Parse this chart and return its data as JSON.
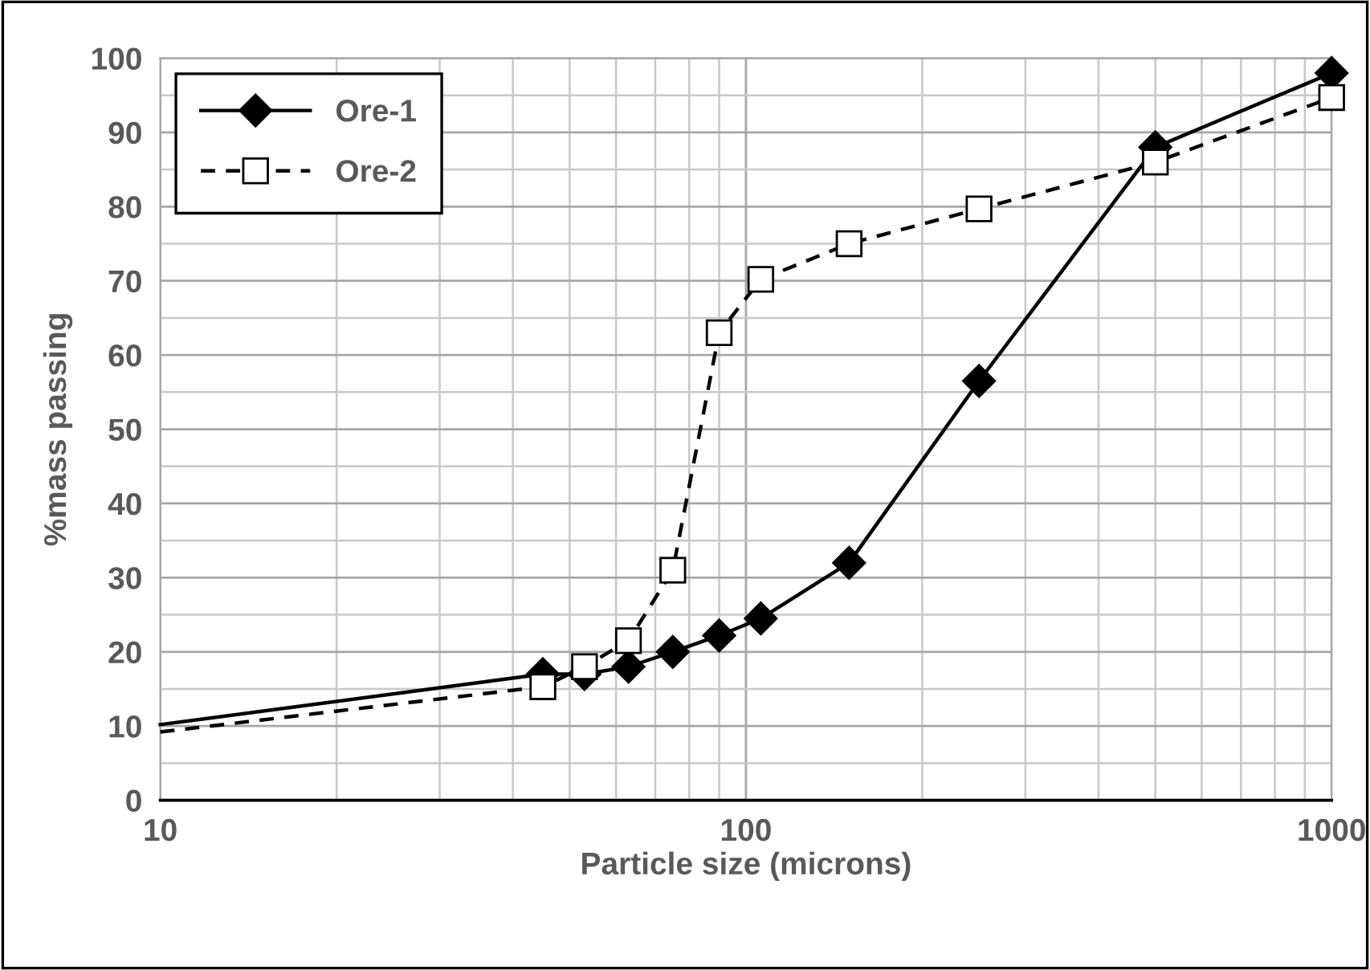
{
  "chart_data": {
    "type": "line",
    "xlabel": "Particle size (microns)",
    "ylabel": "%mass passing",
    "log": "x",
    "xlim": [
      10,
      1000
    ],
    "xticks": [
      10,
      100,
      1000
    ],
    "ylim": [
      0,
      100
    ],
    "yticks": [
      0,
      10,
      20,
      30,
      40,
      50,
      60,
      70,
      80,
      90,
      100
    ],
    "grid": true,
    "legend": "top left",
    "series": [
      {
        "name": "Ore-1",
        "color": "#000000",
        "marker": "diamond",
        "line_style": "solid",
        "x": [
          10,
          45,
          53,
          63,
          75,
          90,
          106,
          150,
          250,
          500,
          1000
        ],
        "values": [
          10.2,
          17,
          17,
          18,
          20,
          22.2,
          24.5,
          32,
          56.5,
          88,
          98
        ]
      },
      {
        "name": "Ore-2",
        "color": "#000000",
        "marker": "square",
        "line_style": "dashed",
        "x": [
          10,
          45,
          53,
          63,
          75,
          90,
          106,
          150,
          250,
          500,
          1000
        ],
        "values": [
          9.2,
          15.3,
          18,
          21.5,
          31,
          63,
          70.2,
          75,
          79.7,
          86,
          94.7
        ]
      }
    ]
  }
}
